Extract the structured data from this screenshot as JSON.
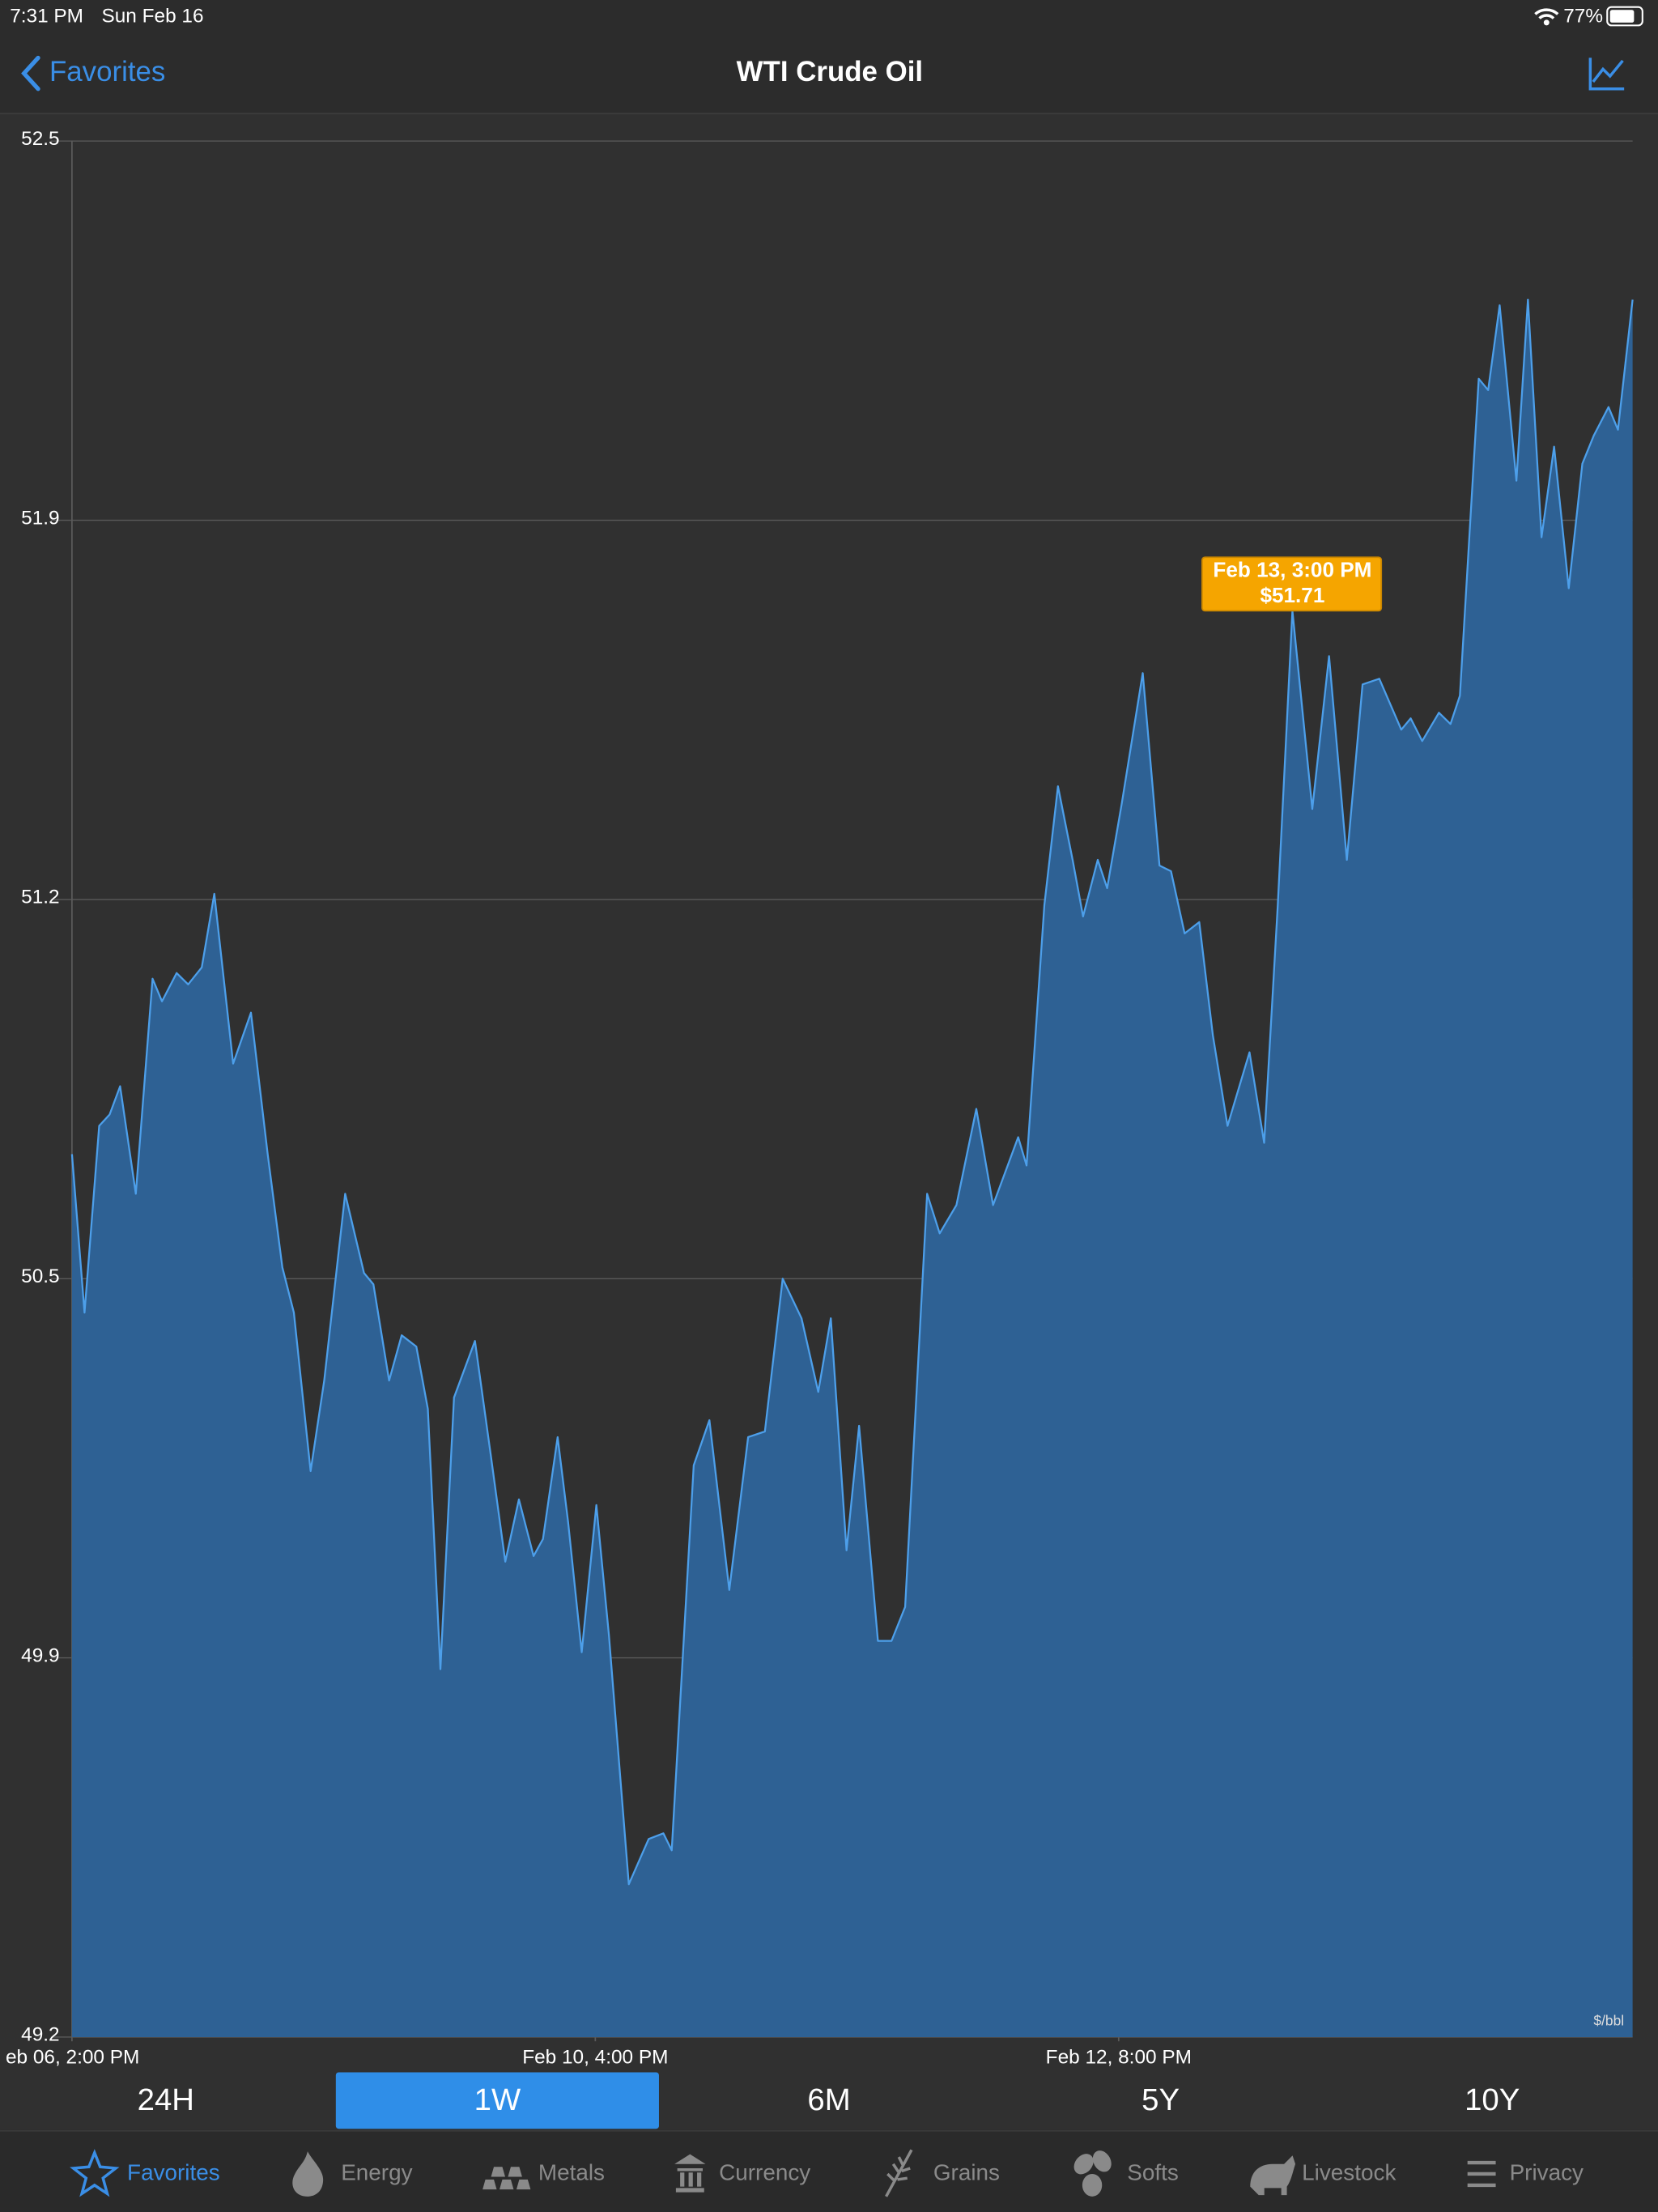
{
  "status_bar": {
    "time": "7:31 PM",
    "date": "Sun Feb 16",
    "battery": "77%"
  },
  "nav": {
    "back": "Favorites",
    "title": "WTI Crude Oil"
  },
  "chart_data": {
    "type": "area",
    "x": [
      0,
      1.2,
      2.6,
      3.6,
      4.6,
      6.1,
      7.7,
      8.6,
      10.0,
      11.1,
      12.4,
      13.6,
      15.4,
      17.1,
      18.7,
      20.1,
      21.2,
      22.8,
      24.1,
      26.1,
      27.9,
      28.8,
      30.3,
      31.5,
      32.9,
      34.0,
      35.2,
      36.5,
      38.5,
      40.0,
      41.4,
      42.7,
      44.1,
      45.0,
      46.4,
      47.4,
      48.7,
      50.1,
      51.3,
      53.2,
      55.1,
      56.5,
      57.3,
      59.4,
      60.9,
      62.8,
      64.6,
      66.2,
      67.9,
      69.7,
      71.3,
      72.5,
      74.0,
      75.2,
      77.0,
      78.3,
      79.6,
      81.7,
      82.9,
      84.5,
      86.4,
      88.0,
      90.4,
      91.2,
      92.9,
      94.2,
      95.6,
      96.6,
      98.0,
      98.9,
      100.3,
      102.3,
      103.9,
      105.0,
      106.3,
      107.7,
      109.0,
      110.4,
      112.5,
      113.9,
      115.2,
      116.6,
      118.5,
      120.1,
      121.8,
      123.3,
      124.9,
      127.0,
      127.9,
      129.0,
      130.6,
      131.7,
      132.6,
      134.4,
      135.3,
      136.4,
      138.0,
      139.1,
      140.4,
      141.6,
      143.0,
      144.3,
      145.4,
      146.8,
      147.7,
      149.1
    ],
    "values": [
      50.75,
      50.47,
      50.8,
      50.82,
      50.87,
      50.68,
      51.06,
      51.02,
      51.07,
      51.05,
      51.08,
      51.21,
      50.91,
      51.0,
      50.75,
      50.55,
      50.47,
      50.19,
      50.35,
      50.68,
      50.54,
      50.52,
      50.35,
      50.43,
      50.41,
      50.3,
      49.84,
      50.32,
      50.42,
      50.22,
      50.03,
      50.14,
      50.04,
      50.07,
      50.25,
      50.1,
      49.87,
      50.13,
      49.9,
      49.46,
      49.54,
      49.55,
      49.52,
      50.2,
      50.28,
      49.98,
      50.25,
      50.26,
      50.53,
      50.46,
      50.33,
      50.46,
      50.05,
      50.27,
      49.89,
      49.89,
      49.95,
      50.68,
      50.61,
      50.66,
      50.83,
      50.66,
      50.78,
      50.73,
      51.19,
      51.4,
      51.27,
      51.17,
      51.27,
      51.22,
      51.37,
      51.6,
      51.26,
      51.25,
      51.14,
      51.16,
      50.96,
      50.8,
      50.93,
      50.77,
      51.19,
      51.71,
      51.36,
      51.63,
      51.27,
      51.58,
      51.59,
      51.5,
      51.52,
      51.48,
      51.53,
      51.51,
      51.56,
      52.12,
      52.1,
      52.25,
      51.94,
      52.26,
      51.84,
      52.0,
      51.75,
      51.97,
      52.02,
      52.07,
      52.03,
      52.26
    ],
    "color": "#2e6194",
    "line_color": "#4d9fea",
    "xlim": [
      0,
      149.1
    ],
    "xticks": [
      {
        "value": 0,
        "label": "eb 06, 2:00 PM"
      },
      {
        "value": 50,
        "label": "Feb 10, 4:00 PM"
      },
      {
        "value": 100,
        "label": "Feb 12, 8:00 PM"
      }
    ],
    "ylim": [
      49.19,
      52.54
    ],
    "yticks": [
      {
        "value": 49.19,
        "label": "49.2"
      },
      {
        "value": 49.86,
        "label": "49.9"
      },
      {
        "value": 50.53,
        "label": "50.5"
      },
      {
        "value": 51.2,
        "label": "51.2"
      },
      {
        "value": 51.87,
        "label": "51.9"
      },
      {
        "value": 52.54,
        "label": "52.5"
      }
    ],
    "grid": true,
    "unit_label": "$/bbl",
    "annotation": {
      "x": 116.6,
      "value": 51.71,
      "label": "Feb 13, 3:00 PM",
      "value_label": "$51.71",
      "color": "#f5a500"
    }
  },
  "range_tabs": {
    "items": [
      "24H",
      "1W",
      "6M",
      "5Y",
      "10Y"
    ],
    "selected": 1
  },
  "tab_bar": {
    "items": [
      "Favorites",
      "Energy",
      "Metals",
      "Currency",
      "Grains",
      "Softs",
      "Livestock",
      "Privacy"
    ],
    "selected": 0
  }
}
